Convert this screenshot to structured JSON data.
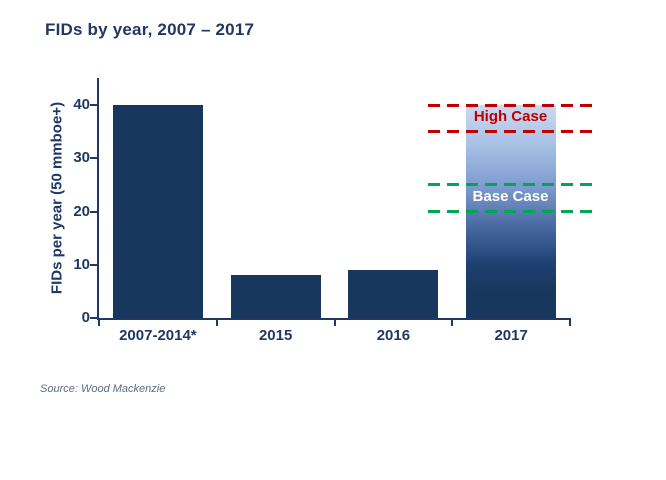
{
  "title": {
    "text": "FIDs by year, 2007 – 2017",
    "color": "#1F3864"
  },
  "source": {
    "text": "Source: Wood Mackenzie",
    "color": "#5B6B88"
  },
  "chart_data": {
    "type": "bar",
    "title": "FIDs by year, 2007 – 2017",
    "xlabel": "",
    "ylabel": "FIDs per year (50 mmboe+)",
    "ylim": [
      0,
      40
    ],
    "yticks": [
      0,
      10,
      20,
      30,
      40
    ],
    "grid": false,
    "legend": "none",
    "categories": [
      "2007-2014*",
      "2015",
      "2016",
      "2017"
    ],
    "values": [
      40,
      8,
      9,
      40
    ],
    "bar_styles": [
      "solid",
      "solid",
      "solid",
      "gradient"
    ],
    "bar_color": "#17375E",
    "gradient_top_color": "#CBDAF1",
    "axis_color": "#1F3864",
    "annotations": [
      {
        "label": "High Case",
        "min": 35,
        "max": 40,
        "line_style": "dashed",
        "color": "#C00000",
        "label_color": "#C00000"
      },
      {
        "label": "Base Case",
        "min": 20,
        "max": 25,
        "line_style": "dashed",
        "color": "#00A651",
        "label_color": "#FFFFFF"
      }
    ]
  }
}
